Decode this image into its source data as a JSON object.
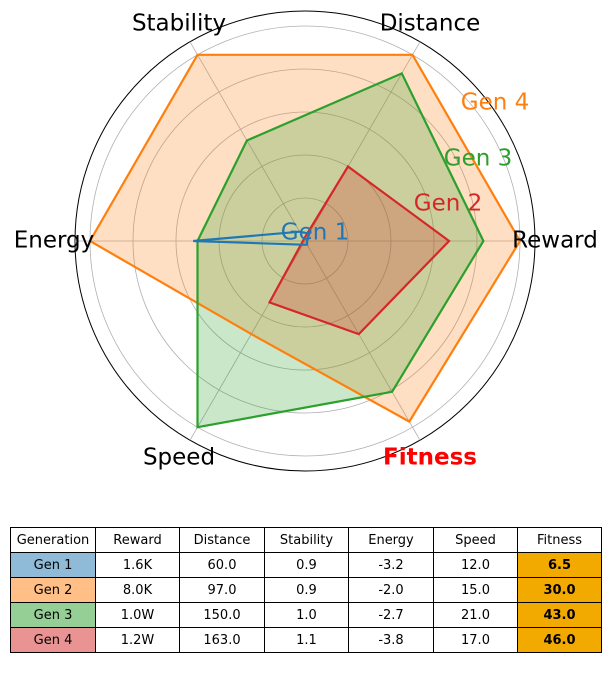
{
  "chart_data": {
    "type": "radar",
    "axes": [
      "Reward",
      "Fitness",
      "Speed",
      "Energy",
      "Stability",
      "Distance"
    ],
    "highlight_axis": "Fitness",
    "highlight_color": "#ff0000",
    "radial_levels": 5,
    "series": [
      {
        "name": "Gen 1",
        "color": "#1f77b4",
        "fill": false,
        "values": [
          0.01,
          0.02,
          0.02,
          0.52,
          0.05,
          0.04
        ]
      },
      {
        "name": "Gen 2",
        "color": "#d62728",
        "fill": true,
        "values": [
          0.67,
          0.5,
          0.33,
          0.01,
          0.01,
          0.4
        ]
      },
      {
        "name": "Gen 3",
        "color": "#2ca02c",
        "fill": true,
        "values": [
          0.83,
          0.81,
          1.0,
          0.5,
          0.54,
          0.9
        ]
      },
      {
        "name": "Gen 4",
        "color": "#ff7f0e",
        "fill": true,
        "values": [
          1.0,
          0.97,
          0.5,
          1.0,
          1.0,
          1.0
        ]
      }
    ]
  },
  "table": {
    "headers": [
      "Generation",
      "Reward",
      "Distance",
      "Stability",
      "Energy",
      "Speed",
      "Fitness"
    ],
    "rows": [
      {
        "label": "Gen 1",
        "color": "#8fbbd9",
        "cells": [
          "1.6K",
          "60.0",
          "0.9",
          "-3.2",
          "12.0"
        ],
        "fitness": "6.5"
      },
      {
        "label": "Gen 2",
        "color": "#ffbf86",
        "cells": [
          "8.0K",
          "97.0",
          "0.9",
          "-2.0",
          "15.0"
        ],
        "fitness": "30.0"
      },
      {
        "label": "Gen 3",
        "color": "#95cf95",
        "cells": [
          "1.0W",
          "150.0",
          "1.0",
          "-2.7",
          "21.0"
        ],
        "fitness": "43.0"
      },
      {
        "label": "Gen 4",
        "color": "#ea9393",
        "cells": [
          "1.2W",
          "163.0",
          "1.1",
          "-3.8",
          "17.0"
        ],
        "fitness": "46.0"
      }
    ],
    "fitness_color": "#f2a900"
  }
}
